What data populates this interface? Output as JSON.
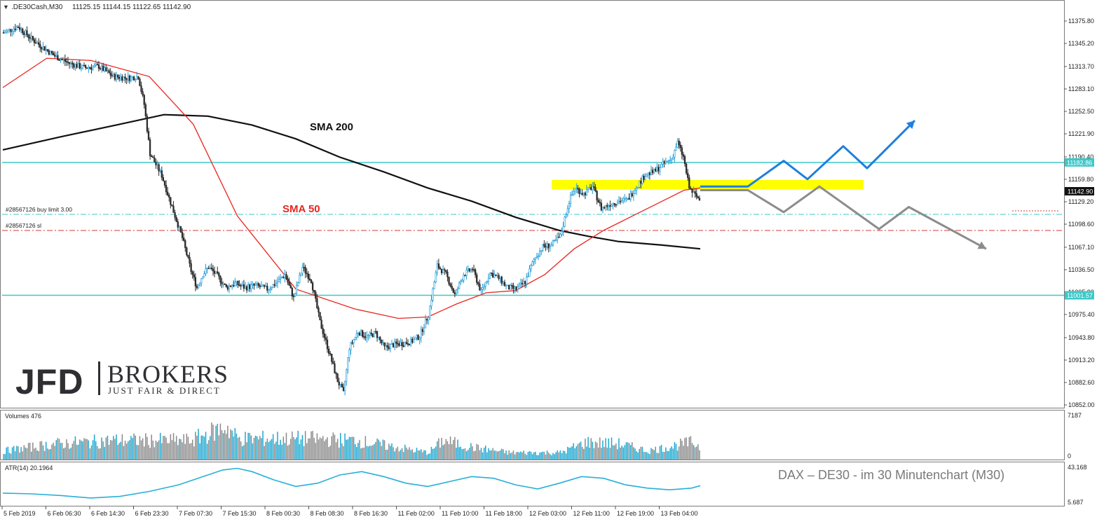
{
  "header": {
    "symbol": ".DE30Cash,M30",
    "ohlc": "11125.15 11144.15 11122.65 11142.90"
  },
  "colors": {
    "bull": "#1e9bd7",
    "bear": "#2b2b2b",
    "sma50": "#e8261f",
    "sma200": "#111111",
    "hline": "#3ec8c8",
    "zone": "#ffff00",
    "blue_path": "#1e7fe0",
    "gray_path": "#8c8c8c",
    "vol_up": "#1aa7d1",
    "vol_down": "#8a8a8a",
    "atr": "#27b0d8"
  },
  "chart_data": {
    "type": "candlestick",
    "timeframe": "M30",
    "y_ticks": [
      "11375.80",
      "11345.20",
      "11313.70",
      "11283.10",
      "11252.50",
      "11221.90",
      "11190.40",
      "11159.80",
      "11129.20",
      "11098.60",
      "11067.10",
      "11036.50",
      "11005.90",
      "10975.40",
      "10943.80",
      "10913.20",
      "10882.60",
      "10852.00"
    ],
    "ylim": [
      10852.0,
      11390.0
    ],
    "x_ticks": [
      "5 Feb 2019",
      "6 Feb 06:30",
      "6 Feb 14:30",
      "6 Feb 23:30",
      "7 Feb 07:30",
      "7 Feb 15:30",
      "8 Feb 00:30",
      "8 Feb 08:30",
      "8 Feb 16:30",
      "11 Feb 02:00",
      "11 Feb 10:00",
      "11 Feb 18:00",
      "12 Feb 03:00",
      "12 Feb 11:00",
      "12 Feb 19:00",
      "13 Feb 04:00"
    ],
    "close_path": [
      [
        0,
        11360
      ],
      [
        10,
        11368
      ],
      [
        20,
        11350
      ],
      [
        35,
        11328
      ],
      [
        45,
        11318
      ],
      [
        55,
        11312
      ],
      [
        65,
        11314
      ],
      [
        75,
        11300
      ],
      [
        85,
        11298
      ],
      [
        92,
        11300
      ],
      [
        96,
        11262
      ],
      [
        100,
        11195
      ],
      [
        108,
        11165
      ],
      [
        115,
        11122
      ],
      [
        122,
        11080
      ],
      [
        128,
        11035
      ],
      [
        132,
        11012
      ],
      [
        136,
        11030
      ],
      [
        140,
        11040
      ],
      [
        146,
        11028
      ],
      [
        152,
        11012
      ],
      [
        158,
        11018
      ],
      [
        165,
        11012
      ],
      [
        172,
        11015
      ],
      [
        180,
        11010
      ],
      [
        186,
        11018
      ],
      [
        192,
        11030
      ],
      [
        198,
        10998
      ],
      [
        204,
        11040
      ],
      [
        210,
        11022
      ],
      [
        216,
        10965
      ],
      [
        222,
        10925
      ],
      [
        228,
        10885
      ],
      [
        232,
        10868
      ],
      [
        236,
        10930
      ],
      [
        242,
        10952
      ],
      [
        248,
        10945
      ],
      [
        254,
        10950
      ],
      [
        260,
        10930
      ],
      [
        266,
        10934
      ],
      [
        272,
        10936
      ],
      [
        278,
        10938
      ],
      [
        284,
        10946
      ],
      [
        290,
        10975
      ],
      [
        296,
        11042
      ],
      [
        302,
        11030
      ],
      [
        308,
        11002
      ],
      [
        314,
        11030
      ],
      [
        320,
        11038
      ],
      [
        326,
        11006
      ],
      [
        332,
        11032
      ],
      [
        338,
        11025
      ],
      [
        344,
        11012
      ],
      [
        350,
        11010
      ],
      [
        356,
        11020
      ],
      [
        362,
        11050
      ],
      [
        368,
        11068
      ],
      [
        374,
        11070
      ],
      [
        380,
        11082
      ],
      [
        386,
        11130
      ],
      [
        390,
        11148
      ],
      [
        396,
        11140
      ],
      [
        402,
        11150
      ],
      [
        408,
        11120
      ],
      [
        414,
        11126
      ],
      [
        420,
        11130
      ],
      [
        426,
        11132
      ],
      [
        432,
        11150
      ],
      [
        438,
        11166
      ],
      [
        444,
        11170
      ],
      [
        450,
        11180
      ],
      [
        456,
        11188
      ],
      [
        460,
        11210
      ],
      [
        464,
        11190
      ],
      [
        468,
        11148
      ],
      [
        472,
        11138
      ],
      [
        476,
        11130
      ]
    ],
    "sma50": [
      [
        0,
        11285
      ],
      [
        30,
        11325
      ],
      [
        60,
        11322
      ],
      [
        100,
        11300
      ],
      [
        130,
        11235
      ],
      [
        160,
        11110
      ],
      [
        200,
        11010
      ],
      [
        240,
        10983
      ],
      [
        270,
        10970
      ],
      [
        290,
        10972
      ],
      [
        310,
        10990
      ],
      [
        330,
        11005
      ],
      [
        350,
        11008
      ],
      [
        370,
        11030
      ],
      [
        390,
        11065
      ],
      [
        410,
        11090
      ],
      [
        430,
        11110
      ],
      [
        450,
        11130
      ],
      [
        465,
        11145
      ],
      [
        476,
        11148
      ]
    ],
    "sma200": [
      [
        0,
        11200
      ],
      [
        40,
        11218
      ],
      [
        80,
        11235
      ],
      [
        110,
        11248
      ],
      [
        140,
        11246
      ],
      [
        170,
        11234
      ],
      [
        200,
        11215
      ],
      [
        230,
        11190
      ],
      [
        260,
        11170
      ],
      [
        290,
        11148
      ],
      [
        320,
        11130
      ],
      [
        350,
        11108
      ],
      [
        380,
        11090
      ],
      [
        400,
        11082
      ],
      [
        420,
        11075
      ],
      [
        450,
        11070
      ],
      [
        476,
        11065
      ]
    ],
    "h_lines": [
      {
        "price": 11182.86,
        "label": "11182.86",
        "style": "solid"
      },
      {
        "price": 11001.57,
        "label": "11001.57",
        "style": "solid"
      }
    ],
    "orders": [
      {
        "price": 11112,
        "label": "#28567126 buy limit 3.00",
        "color": "#3ec8c8"
      },
      {
        "price": 11090,
        "label": "#28567126 sl",
        "color": "#d43a3a"
      }
    ],
    "last_price": "11142.90",
    "zone": {
      "top": 11159,
      "bottom": 11146
    },
    "annotations": {
      "sma200": "SMA 200",
      "sma50": "SMA 50"
    },
    "scenario_up": [
      [
        11150,
        0
      ],
      [
        11150,
        8
      ],
      [
        11185,
        14
      ],
      [
        11160,
        18
      ],
      [
        11205,
        24
      ],
      [
        11175,
        28
      ],
      [
        11240,
        36
      ]
    ],
    "scenario_down": [
      [
        11145,
        0
      ],
      [
        11145,
        8
      ],
      [
        11115,
        14
      ],
      [
        11150,
        20
      ],
      [
        11092,
        30
      ],
      [
        11122,
        35
      ],
      [
        11065,
        48
      ]
    ],
    "volume": {
      "label": "Volumes 476",
      "ymax": "7187",
      "ymin": "0"
    },
    "atr": {
      "label": "ATR(14) 20.1964",
      "ymax": "43.168",
      "ymin": "5.687",
      "values": [
        [
          0,
          12
        ],
        [
          20,
          11
        ],
        [
          40,
          9
        ],
        [
          60,
          6
        ],
        [
          80,
          8
        ],
        [
          100,
          14
        ],
        [
          120,
          22
        ],
        [
          140,
          34
        ],
        [
          150,
          40
        ],
        [
          160,
          42
        ],
        [
          170,
          38
        ],
        [
          185,
          28
        ],
        [
          200,
          20
        ],
        [
          215,
          24
        ],
        [
          230,
          34
        ],
        [
          245,
          38
        ],
        [
          260,
          32
        ],
        [
          275,
          24
        ],
        [
          290,
          20
        ],
        [
          305,
          26
        ],
        [
          320,
          32
        ],
        [
          335,
          30
        ],
        [
          350,
          22
        ],
        [
          365,
          17
        ],
        [
          380,
          24
        ],
        [
          395,
          32
        ],
        [
          410,
          30
        ],
        [
          425,
          22
        ],
        [
          440,
          18
        ],
        [
          455,
          16
        ],
        [
          470,
          18
        ],
        [
          476,
          21
        ]
      ]
    }
  },
  "caption": "DAX – DE30 - im  30 Minutenchart (M30)",
  "logo": {
    "jfd": "JFD",
    "brokers": "BROKERS",
    "tagline": "JUST FAIR & DIRECT"
  }
}
